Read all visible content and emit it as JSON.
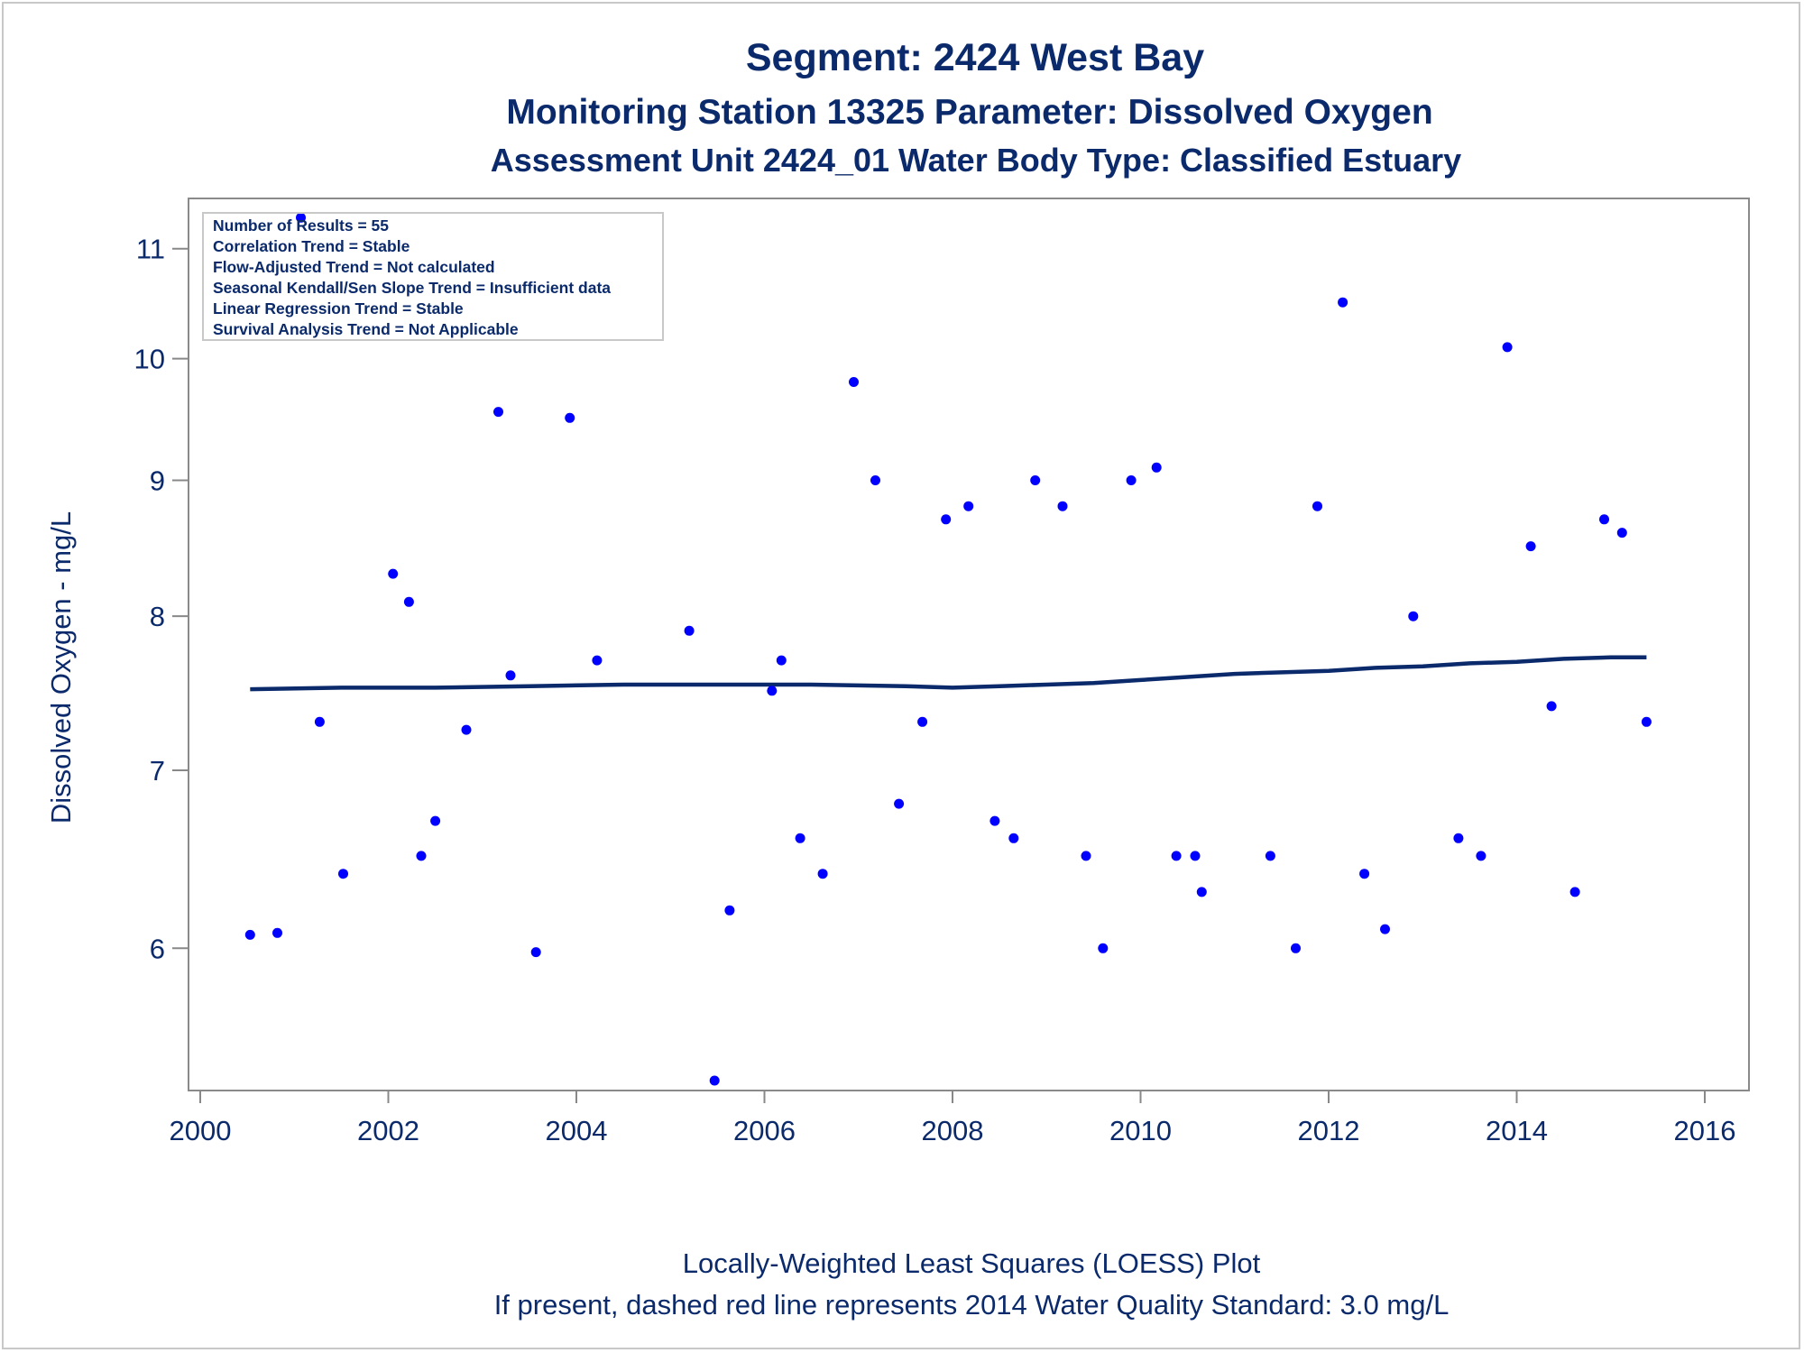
{
  "chart_data": {
    "type": "scatter",
    "title": "Segment: 2424  West Bay",
    "subtitle": "Monitoring Station 13325 Parameter: Dissolved Oxygen",
    "subtitle2": "Assessment Unit 2424_01   Water Body Type: Classified Estuary",
    "xlabel": "",
    "ylabel": "Dissolved Oxygen - mg/L",
    "xlim": [
      2000,
      2016
    ],
    "xticks": [
      "2000",
      "2002",
      "2004",
      "2006",
      "2008",
      "2010",
      "2012",
      "2014",
      "2016"
    ],
    "y_scale": "log",
    "ylim": [
      5.35,
      11.4
    ],
    "yticks": [
      "6",
      "7",
      "8",
      "9",
      "10",
      "11"
    ],
    "grid": false,
    "stats_box": {
      "lines": [
        "Number of Results = 55",
        "Correlation Trend = Stable",
        "Flow-Adjusted Trend = Not calculated",
        "Seasonal Kendall/Sen Slope Trend = Insufficient data",
        "Linear Regression Trend = Stable",
        "Survival Analysis Trend = Not Applicable"
      ],
      "placement": "top-left"
    },
    "footnotes": [
      "Locally-Weighted Least Squares (LOESS) Plot",
      "If present, dashed red line represents 2014 Water Quality Standard: 3.0 mg/L"
    ],
    "colors": {
      "points": "#0000ff",
      "loess": "#0b2a6b",
      "text": "#0b2a6b",
      "axis": "#888888"
    },
    "series": [
      {
        "type": "scatter",
        "points": [
          [
            2000.53,
            6.07
          ],
          [
            2000.82,
            6.08
          ],
          [
            2001.07,
            11.3
          ],
          [
            2001.27,
            7.3
          ],
          [
            2001.52,
            6.4
          ],
          [
            2002.05,
            8.3
          ],
          [
            2002.22,
            8.1
          ],
          [
            2002.35,
            6.5
          ],
          [
            2002.5,
            6.7
          ],
          [
            2002.83,
            7.25
          ],
          [
            2003.17,
            9.55
          ],
          [
            2003.3,
            7.6
          ],
          [
            2003.57,
            5.98
          ],
          [
            2003.93,
            9.5
          ],
          [
            2004.22,
            7.7
          ],
          [
            2005.2,
            7.9
          ],
          [
            2005.47,
            5.35
          ],
          [
            2005.63,
            6.2
          ],
          [
            2006.08,
            7.5
          ],
          [
            2006.18,
            7.7
          ],
          [
            2006.38,
            6.6
          ],
          [
            2006.62,
            6.4
          ],
          [
            2006.95,
            9.8
          ],
          [
            2007.18,
            9.0
          ],
          [
            2007.43,
            6.8
          ],
          [
            2007.68,
            7.3
          ],
          [
            2007.93,
            8.7
          ],
          [
            2008.17,
            8.8
          ],
          [
            2008.45,
            6.7
          ],
          [
            2008.65,
            6.6
          ],
          [
            2008.88,
            9.0
          ],
          [
            2009.17,
            8.8
          ],
          [
            2009.42,
            6.5
          ],
          [
            2009.6,
            6.0
          ],
          [
            2009.9,
            9.0
          ],
          [
            2010.17,
            9.1
          ],
          [
            2010.38,
            6.5
          ],
          [
            2010.58,
            6.5
          ],
          [
            2010.65,
            6.3
          ],
          [
            2011.38,
            6.5
          ],
          [
            2011.65,
            6.0
          ],
          [
            2011.88,
            8.8
          ],
          [
            2012.15,
            10.5
          ],
          [
            2012.38,
            6.4
          ],
          [
            2012.6,
            6.1
          ],
          [
            2012.9,
            8.0
          ],
          [
            2013.38,
            6.6
          ],
          [
            2013.62,
            6.5
          ],
          [
            2013.9,
            10.1
          ],
          [
            2014.15,
            8.5
          ],
          [
            2014.37,
            7.4
          ],
          [
            2014.62,
            6.3
          ],
          [
            2014.93,
            8.7
          ],
          [
            2015.12,
            8.6
          ],
          [
            2015.38,
            7.3
          ]
        ]
      },
      {
        "type": "line",
        "points": [
          [
            2000.53,
            7.51
          ],
          [
            2001.5,
            7.52
          ],
          [
            2002.5,
            7.52
          ],
          [
            2003.5,
            7.53
          ],
          [
            2004.5,
            7.54
          ],
          [
            2005.5,
            7.54
          ],
          [
            2006.5,
            7.54
          ],
          [
            2007.5,
            7.53
          ],
          [
            2008.0,
            7.52
          ],
          [
            2008.5,
            7.53
          ],
          [
            2009.0,
            7.54
          ],
          [
            2009.5,
            7.55
          ],
          [
            2010.0,
            7.57
          ],
          [
            2010.5,
            7.59
          ],
          [
            2011.0,
            7.61
          ],
          [
            2011.5,
            7.62
          ],
          [
            2012.0,
            7.63
          ],
          [
            2012.5,
            7.65
          ],
          [
            2013.0,
            7.66
          ],
          [
            2013.5,
            7.68
          ],
          [
            2014.0,
            7.69
          ],
          [
            2014.5,
            7.71
          ],
          [
            2015.0,
            7.72
          ],
          [
            2015.38,
            7.72
          ]
        ]
      }
    ]
  }
}
